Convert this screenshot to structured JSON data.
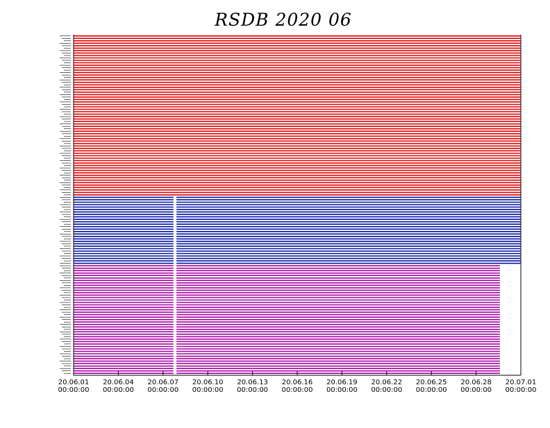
{
  "chart_data": {
    "type": "table",
    "title": "RSDB  2020  06",
    "x_ticks": [
      {
        "date": "20.06.01",
        "time": "00:00:00"
      },
      {
        "date": "20.06.04",
        "time": "00:00:00"
      },
      {
        "date": "20.06.07",
        "time": "00:00:00"
      },
      {
        "date": "20.06.10",
        "time": "00:00:00"
      },
      {
        "date": "20.06.13",
        "time": "00:00:00"
      },
      {
        "date": "20.06.16",
        "time": "00:00:00"
      },
      {
        "date": "20.06.19",
        "time": "00:00:00"
      },
      {
        "date": "20.06.22",
        "time": "00:00:00"
      },
      {
        "date": "20.06.25",
        "time": "00:00:00"
      },
      {
        "date": "20.06.28",
        "time": "00:00:00"
      },
      {
        "date": "20.07.01",
        "time": "00:00:00"
      }
    ],
    "x_range_days": [
      0,
      30
    ],
    "groups": [
      {
        "color": "#e00000",
        "row_count": 66,
        "start_day": 0,
        "end_day": 30
      },
      {
        "color": "#0010a0",
        "row_count": 28,
        "start_day": 0,
        "end_day": 30,
        "gap_days": [
          6.7,
          6.9
        ]
      },
      {
        "color": "#a000a0",
        "row_count": 45,
        "start_day": 0,
        "end_day": 28.6,
        "gap_days": [
          6.7,
          6.9
        ]
      }
    ],
    "colors": {
      "red": "#e00000",
      "blue": "#0010a0",
      "purple": "#a000a0"
    }
  }
}
